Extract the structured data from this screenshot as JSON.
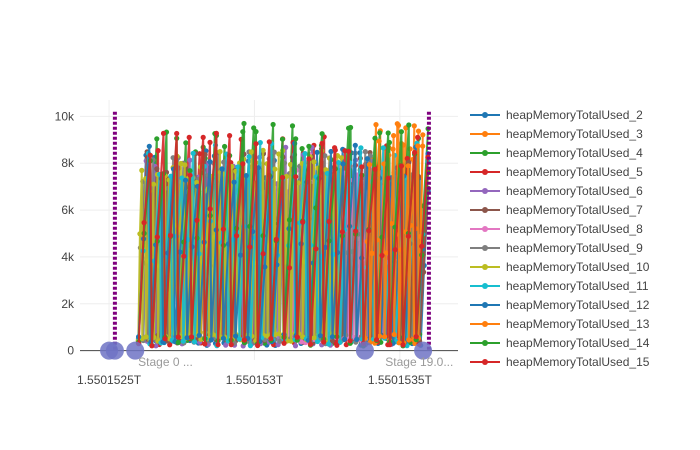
{
  "chart_data": {
    "type": "line",
    "title": "",
    "xlabel": "",
    "ylabel": "",
    "xlim": [
      1.5501524,
      1.5501537
    ],
    "ylim": [
      -400,
      10700
    ],
    "grid": true,
    "legend_position": "right",
    "x_ticks": [
      {
        "value": 1.5501525,
        "label": "1.5501525T"
      },
      {
        "value": 1.550153,
        "label": "1.550153T"
      },
      {
        "value": 1.5501535,
        "label": "1.5501535T"
      }
    ],
    "y_ticks": [
      {
        "value": 0,
        "label": "0"
      },
      {
        "value": 2000,
        "label": "2k"
      },
      {
        "value": 4000,
        "label": "4k"
      },
      {
        "value": 6000,
        "label": "6k"
      },
      {
        "value": 8000,
        "label": "8k"
      },
      {
        "value": 10000,
        "label": "10k"
      }
    ],
    "markers": [
      {
        "x": 1.5501525,
        "y": 0
      },
      {
        "x": 1.55015252,
        "y": 0
      },
      {
        "x": 1.55015259,
        "y": 0
      },
      {
        "x": 1.55015338,
        "y": 0
      },
      {
        "x": 1.55015358,
        "y": 0
      }
    ],
    "vertical_lines": [
      {
        "x": 1.55015252,
        "y_max": 10200,
        "color": "#7f007f"
      },
      {
        "x": 1.5501536,
        "y_max": 10200,
        "color": "#7f007f"
      }
    ],
    "annotation_labels": [
      {
        "x": 1.5501526,
        "text": "Stage 0 ..."
      },
      {
        "x": 1.55015345,
        "text": "Stage 19.0..."
      }
    ],
    "series": [
      {
        "name": "heapMemoryTotalUsed_2",
        "color": "#1f77b4",
        "x_start": 1.5501526,
        "x_end": 1.5501536,
        "y_min": 200,
        "y_max": 8600,
        "cycles": 34,
        "seed": 2
      },
      {
        "name": "heapMemoryTotalUsed_3",
        "color": "#ff7f0e",
        "x_start": 1.55015339,
        "x_end": 1.55015358,
        "y_min": 300,
        "y_max": 10200,
        "cycles": 13,
        "seed": 3
      },
      {
        "name": "heapMemoryTotalUsed_4",
        "color": "#2ca02c",
        "x_start": 1.5501526,
        "x_end": 1.5501536,
        "y_min": 300,
        "y_max": 9700,
        "cycles": 30,
        "seed": 4
      },
      {
        "name": "heapMemoryTotalUsed_5",
        "color": "#d62728",
        "x_start": 1.5501526,
        "x_end": 1.5501536,
        "y_min": 200,
        "y_max": 9300,
        "cycles": 28,
        "seed": 5
      },
      {
        "name": "heapMemoryTotalUsed_6",
        "color": "#9467bd",
        "x_start": 1.5501526,
        "x_end": 1.5501535,
        "y_min": 200,
        "y_max": 8700,
        "cycles": 30,
        "seed": 6
      },
      {
        "name": "heapMemoryTotalUsed_7",
        "color": "#8c564b",
        "x_start": 1.5501526,
        "x_end": 1.5501536,
        "y_min": 300,
        "y_max": 8700,
        "cycles": 30,
        "seed": 7
      },
      {
        "name": "heapMemoryTotalUsed_8",
        "color": "#e377c2",
        "x_start": 1.5501531,
        "x_end": 1.5501534,
        "y_min": 300,
        "y_max": 8400,
        "cycles": 20,
        "seed": 8
      },
      {
        "name": "heapMemoryTotalUsed_9",
        "color": "#7f7f7f",
        "x_start": 1.5501526,
        "x_end": 1.5501534,
        "y_min": 300,
        "y_max": 8500,
        "cycles": 46,
        "seed": 9
      },
      {
        "name": "heapMemoryTotalUsed_10",
        "color": "#bcbd22",
        "x_start": 1.5501526,
        "x_end": 1.5501533,
        "y_min": 400,
        "y_max": 8600,
        "cycles": 52,
        "seed": 10
      },
      {
        "name": "heapMemoryTotalUsed_11",
        "color": "#17becf",
        "x_start": 1.5501526,
        "x_end": 1.5501536,
        "y_min": 200,
        "y_max": 9000,
        "cycles": 26,
        "seed": 11
      },
      {
        "name": "heapMemoryTotalUsed_12",
        "color": "#1f77b4",
        "x_start": 1.5501526,
        "x_end": 1.5501536,
        "y_min": 300,
        "y_max": 8900,
        "cycles": 24,
        "seed": 12
      },
      {
        "name": "heapMemoryTotalUsed_13",
        "color": "#ff7f0e",
        "x_start": 1.55015338,
        "x_end": 1.55015358,
        "y_min": 300,
        "y_max": 9800,
        "cycles": 12,
        "seed": 13
      },
      {
        "name": "heapMemoryTotalUsed_14",
        "color": "#2ca02c",
        "x_start": 1.5501526,
        "x_end": 1.5501536,
        "y_min": 200,
        "y_max": 9500,
        "cycles": 22,
        "seed": 14
      },
      {
        "name": "heapMemoryTotalUsed_15",
        "color": "#d62728",
        "x_start": 1.5501526,
        "x_end": 1.5501536,
        "y_min": 200,
        "y_max": 9300,
        "cycles": 22,
        "seed": 15
      }
    ]
  }
}
